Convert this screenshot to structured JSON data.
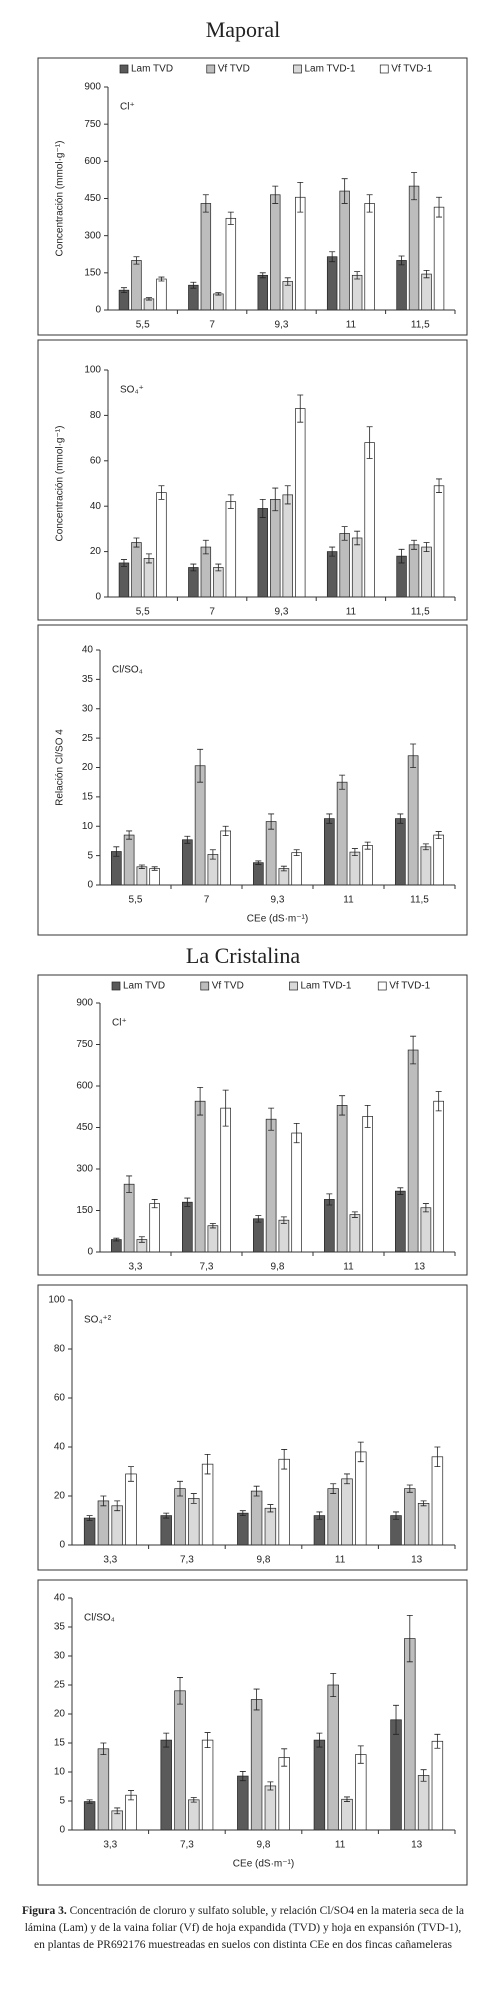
{
  "sections": [
    "Maporal",
    "La Cristalina"
  ],
  "caption": {
    "label": "Figura 3.",
    "text": "Concentración de cloruro y sulfato soluble, y relación Cl/SO4 en la materia seca de la lámina (Lam) y de la vaina foliar (Vf) de hoja expandida (TVD) y hoja en expansión (TVD-1), en plantas de PR692176 muestreadas en suelos con distinta CEe en dos fincas cañameleras"
  },
  "chart_data": [
    {
      "type": "bar",
      "annotation": "Cl⁺",
      "y_label": "Concentración (mmol·g⁻¹)",
      "legend": "top",
      "categories": [
        "5,5",
        "7",
        "9,3",
        "11",
        "11,5"
      ],
      "ylim": [
        0,
        900
      ],
      "yticks": [
        0,
        150,
        300,
        450,
        600,
        750,
        900
      ],
      "series": [
        {
          "name": "Lam TVD",
          "color": "#5a5a5a",
          "values": [
            80,
            100,
            140,
            215,
            200
          ],
          "errors": [
            10,
            12,
            10,
            20,
            18
          ]
        },
        {
          "name": "Vf TVD",
          "color": "#bdbdbd",
          "values": [
            200,
            430,
            465,
            480,
            500
          ],
          "errors": [
            15,
            35,
            35,
            50,
            55
          ]
        },
        {
          "name": "Lam TVD-1",
          "color": "#d9d9d9",
          "values": [
            45,
            65,
            115,
            140,
            145
          ],
          "errors": [
            5,
            5,
            15,
            15,
            15
          ]
        },
        {
          "name": "Vf TVD-1",
          "color": "#ffffff",
          "values": [
            125,
            370,
            455,
            430,
            415
          ],
          "errors": [
            8,
            25,
            60,
            35,
            40
          ]
        }
      ]
    },
    {
      "type": "bar",
      "annotation": "SO₄⁺",
      "y_label": "Concentración (mmol·g⁻¹)",
      "categories": [
        "5,5",
        "7",
        "9,3",
        "11",
        "11,5"
      ],
      "ylim": [
        0,
        100
      ],
      "yticks": [
        0,
        20,
        40,
        60,
        80,
        100
      ],
      "series": [
        {
          "name": "Lam TVD",
          "color": "#5a5a5a",
          "values": [
            15,
            13,
            39,
            20,
            18
          ],
          "errors": [
            1.5,
            1.5,
            4,
            2,
            3
          ]
        },
        {
          "name": "Vf TVD",
          "color": "#bdbdbd",
          "values": [
            24,
            22,
            43,
            28,
            23
          ],
          "errors": [
            2,
            3,
            5,
            3,
            2
          ]
        },
        {
          "name": "Lam TVD-1",
          "color": "#d9d9d9",
          "values": [
            17,
            13,
            45,
            26,
            22
          ],
          "errors": [
            2,
            1.5,
            4,
            3,
            2
          ]
        },
        {
          "name": "Vf TVD-1",
          "color": "#ffffff",
          "values": [
            46,
            42,
            83,
            68,
            49
          ],
          "errors": [
            3,
            3,
            6,
            7,
            3
          ]
        }
      ]
    },
    {
      "type": "bar",
      "annotation": "Cl/SO₄",
      "y_label": "Relación Cl/SO 4",
      "x_label": "CEe (dS·m⁻¹)",
      "categories": [
        "5,5",
        "7",
        "9,3",
        "11",
        "11,5"
      ],
      "ylim": [
        0,
        40
      ],
      "yticks": [
        0,
        5,
        10,
        15,
        20,
        25,
        30,
        35,
        40
      ],
      "series": [
        {
          "name": "Lam TVD",
          "color": "#5a5a5a",
          "values": [
            5.7,
            7.7,
            3.8,
            11.3,
            11.3
          ],
          "errors": [
            0.8,
            0.6,
            0.3,
            0.8,
            0.8
          ]
        },
        {
          "name": "Vf TVD",
          "color": "#bdbdbd",
          "values": [
            8.5,
            20.3,
            10.8,
            17.5,
            22
          ],
          "errors": [
            0.7,
            2.8,
            1.3,
            1.2,
            2
          ]
        },
        {
          "name": "Lam TVD-1",
          "color": "#d9d9d9",
          "values": [
            3.1,
            5.2,
            2.8,
            5.6,
            6.5
          ],
          "errors": [
            0.3,
            0.8,
            0.4,
            0.6,
            0.5
          ]
        },
        {
          "name": "Vf TVD-1",
          "color": "#ffffff",
          "values": [
            2.8,
            9.2,
            5.5,
            6.7,
            8.5
          ],
          "errors": [
            0.3,
            0.8,
            0.5,
            0.6,
            0.6
          ]
        }
      ]
    },
    {
      "type": "bar",
      "annotation": "Cl⁺",
      "legend": "top",
      "categories": [
        "3,3",
        "7,3",
        "9,8",
        "11",
        "13"
      ],
      "ylim": [
        0,
        900
      ],
      "yticks": [
        0,
        150,
        300,
        450,
        600,
        750,
        900
      ],
      "series": [
        {
          "name": "Lam TVD",
          "color": "#5a5a5a",
          "values": [
            45,
            180,
            120,
            190,
            220
          ],
          "errors": [
            5,
            15,
            12,
            20,
            12
          ]
        },
        {
          "name": "Vf TVD",
          "color": "#bdbdbd",
          "values": [
            245,
            545,
            480,
            530,
            730
          ],
          "errors": [
            30,
            50,
            40,
            35,
            50
          ]
        },
        {
          "name": "Lam TVD-1",
          "color": "#d9d9d9",
          "values": [
            45,
            95,
            115,
            135,
            160
          ],
          "errors": [
            10,
            8,
            12,
            10,
            15
          ]
        },
        {
          "name": "Vf TVD-1",
          "color": "#ffffff",
          "values": [
            175,
            520,
            430,
            490,
            545
          ],
          "errors": [
            15,
            65,
            35,
            40,
            35
          ]
        }
      ]
    },
    {
      "type": "bar",
      "annotation": "SO₄⁺²",
      "categories": [
        "3,3",
        "7,3",
        "9,8",
        "11",
        "13"
      ],
      "ylim": [
        0,
        100
      ],
      "yticks": [
        0,
        20,
        40,
        60,
        80,
        100
      ],
      "series": [
        {
          "name": "Lam TVD",
          "color": "#5a5a5a",
          "values": [
            11,
            12,
            13,
            12,
            12
          ],
          "errors": [
            1,
            1,
            1,
            1.5,
            1.5
          ]
        },
        {
          "name": "Vf TVD",
          "color": "#bdbdbd",
          "values": [
            18,
            23,
            22,
            23,
            23
          ],
          "errors": [
            2,
            3,
            2,
            2,
            1.5
          ]
        },
        {
          "name": "Lam TVD-1",
          "color": "#d9d9d9",
          "values": [
            16,
            19,
            15,
            27,
            17
          ],
          "errors": [
            2,
            2,
            1.5,
            2,
            1
          ]
        },
        {
          "name": "Vf TVD-1",
          "color": "#ffffff",
          "values": [
            29,
            33,
            35,
            38,
            36
          ],
          "errors": [
            3,
            4,
            4,
            4,
            4
          ]
        }
      ]
    },
    {
      "type": "bar",
      "annotation": "Cl/SO₄",
      "x_label": "CEe (dS·m⁻¹)",
      "categories": [
        "3,3",
        "7,3",
        "9,8",
        "11",
        "13"
      ],
      "ylim": [
        0,
        40
      ],
      "yticks": [
        0,
        5,
        10,
        15,
        20,
        25,
        30,
        35,
        40
      ],
      "series": [
        {
          "name": "Lam TVD",
          "color": "#5a5a5a",
          "values": [
            4.9,
            15.5,
            9.3,
            15.5,
            19
          ],
          "errors": [
            0.3,
            1.2,
            0.8,
            1.2,
            2.5
          ]
        },
        {
          "name": "Vf TVD",
          "color": "#bdbdbd",
          "values": [
            14,
            24,
            22.5,
            25,
            33
          ],
          "errors": [
            1,
            2.3,
            1.8,
            2,
            4
          ]
        },
        {
          "name": "Lam TVD-1",
          "color": "#d9d9d9",
          "values": [
            3.3,
            5.2,
            7.6,
            5.3,
            9.4
          ],
          "errors": [
            0.5,
            0.4,
            0.7,
            0.4,
            1
          ]
        },
        {
          "name": "Vf TVD-1",
          "color": "#ffffff",
          "values": [
            6,
            15.5,
            12.5,
            13,
            15.3
          ],
          "errors": [
            0.8,
            1.3,
            1.5,
            1.5,
            1.2
          ]
        }
      ]
    }
  ]
}
